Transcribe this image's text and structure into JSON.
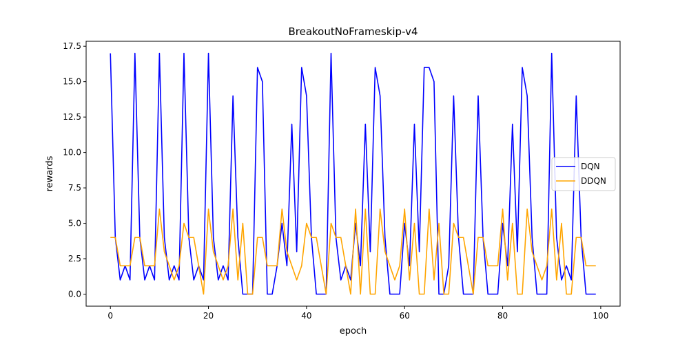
{
  "chart_data": {
    "type": "line",
    "title": "BreakoutNoFrameskip-v4",
    "xlabel": "epoch",
    "ylabel": "rewards",
    "xlim": [
      -4.95,
      103.95
    ],
    "ylim": [
      -0.85,
      17.85
    ],
    "xticks": [
      0,
      20,
      40,
      60,
      80,
      100
    ],
    "yticks": [
      0.0,
      2.5,
      5.0,
      7.5,
      10.0,
      12.5,
      15.0,
      17.5
    ],
    "ytick_labels": [
      "0.0",
      "2.5",
      "5.0",
      "7.5",
      "10.0",
      "12.5",
      "15.0",
      "17.5"
    ],
    "grid": false,
    "legend_position": "center-right",
    "x": [
      0,
      1,
      2,
      3,
      4,
      5,
      6,
      7,
      8,
      9,
      10,
      11,
      12,
      13,
      14,
      15,
      16,
      17,
      18,
      19,
      20,
      21,
      22,
      23,
      24,
      25,
      26,
      27,
      28,
      29,
      30,
      31,
      32,
      33,
      34,
      35,
      36,
      37,
      38,
      39,
      40,
      41,
      42,
      43,
      44,
      45,
      46,
      47,
      48,
      49,
      50,
      51,
      52,
      53,
      54,
      55,
      56,
      57,
      58,
      59,
      60,
      61,
      62,
      63,
      64,
      65,
      66,
      67,
      68,
      69,
      70,
      71,
      72,
      73,
      74,
      75,
      76,
      77,
      78,
      79,
      80,
      81,
      82,
      83,
      84,
      85,
      86,
      87,
      88,
      89,
      90,
      91,
      92,
      93,
      94,
      95,
      96,
      97,
      98,
      99
    ],
    "series": [
      {
        "name": "DQN",
        "color": "#0000ff",
        "values": [
          17,
          4,
          1,
          2,
          1,
          17,
          4,
          1,
          2,
          1,
          17,
          4,
          1,
          2,
          1,
          17,
          4,
          1,
          2,
          1,
          17,
          4,
          1,
          2,
          1,
          14,
          4,
          0,
          0,
          0,
          16,
          15,
          0,
          0,
          2,
          5,
          2,
          12,
          3,
          16,
          14,
          4,
          0,
          0,
          0,
          17,
          4,
          1,
          2,
          1,
          5,
          2,
          12,
          3,
          16,
          14,
          4,
          0,
          0,
          0,
          5,
          2,
          12,
          3,
          16,
          16,
          15,
          0,
          0,
          2,
          14,
          4,
          0,
          0,
          0,
          14,
          4,
          0,
          0,
          0,
          5,
          2,
          12,
          3,
          16,
          14,
          4,
          0,
          0,
          0,
          17,
          4,
          1,
          2,
          1,
          14,
          4,
          0,
          0,
          0
        ]
      },
      {
        "name": "DDQN",
        "color": "#ffa500",
        "values": [
          4,
          4,
          2,
          2,
          2,
          4,
          4,
          2,
          2,
          2,
          6,
          3,
          2,
          1,
          2,
          5,
          4,
          4,
          2,
          0,
          6,
          3,
          2,
          1,
          2,
          6,
          1,
          5,
          0,
          0,
          4,
          4,
          2,
          2,
          2,
          6,
          3,
          2,
          1,
          2,
          5,
          4,
          4,
          2,
          0,
          5,
          4,
          4,
          2,
          0,
          6,
          0,
          6,
          0,
          0,
          6,
          3,
          2,
          1,
          2,
          6,
          1,
          5,
          0,
          0,
          6,
          1,
          5,
          0,
          0,
          5,
          4,
          4,
          2,
          0,
          4,
          4,
          2,
          2,
          2,
          6,
          1,
          5,
          0,
          0,
          6,
          3,
          2,
          1,
          2,
          6,
          1,
          5,
          0,
          0,
          4,
          4,
          2,
          2,
          2
        ]
      }
    ]
  }
}
